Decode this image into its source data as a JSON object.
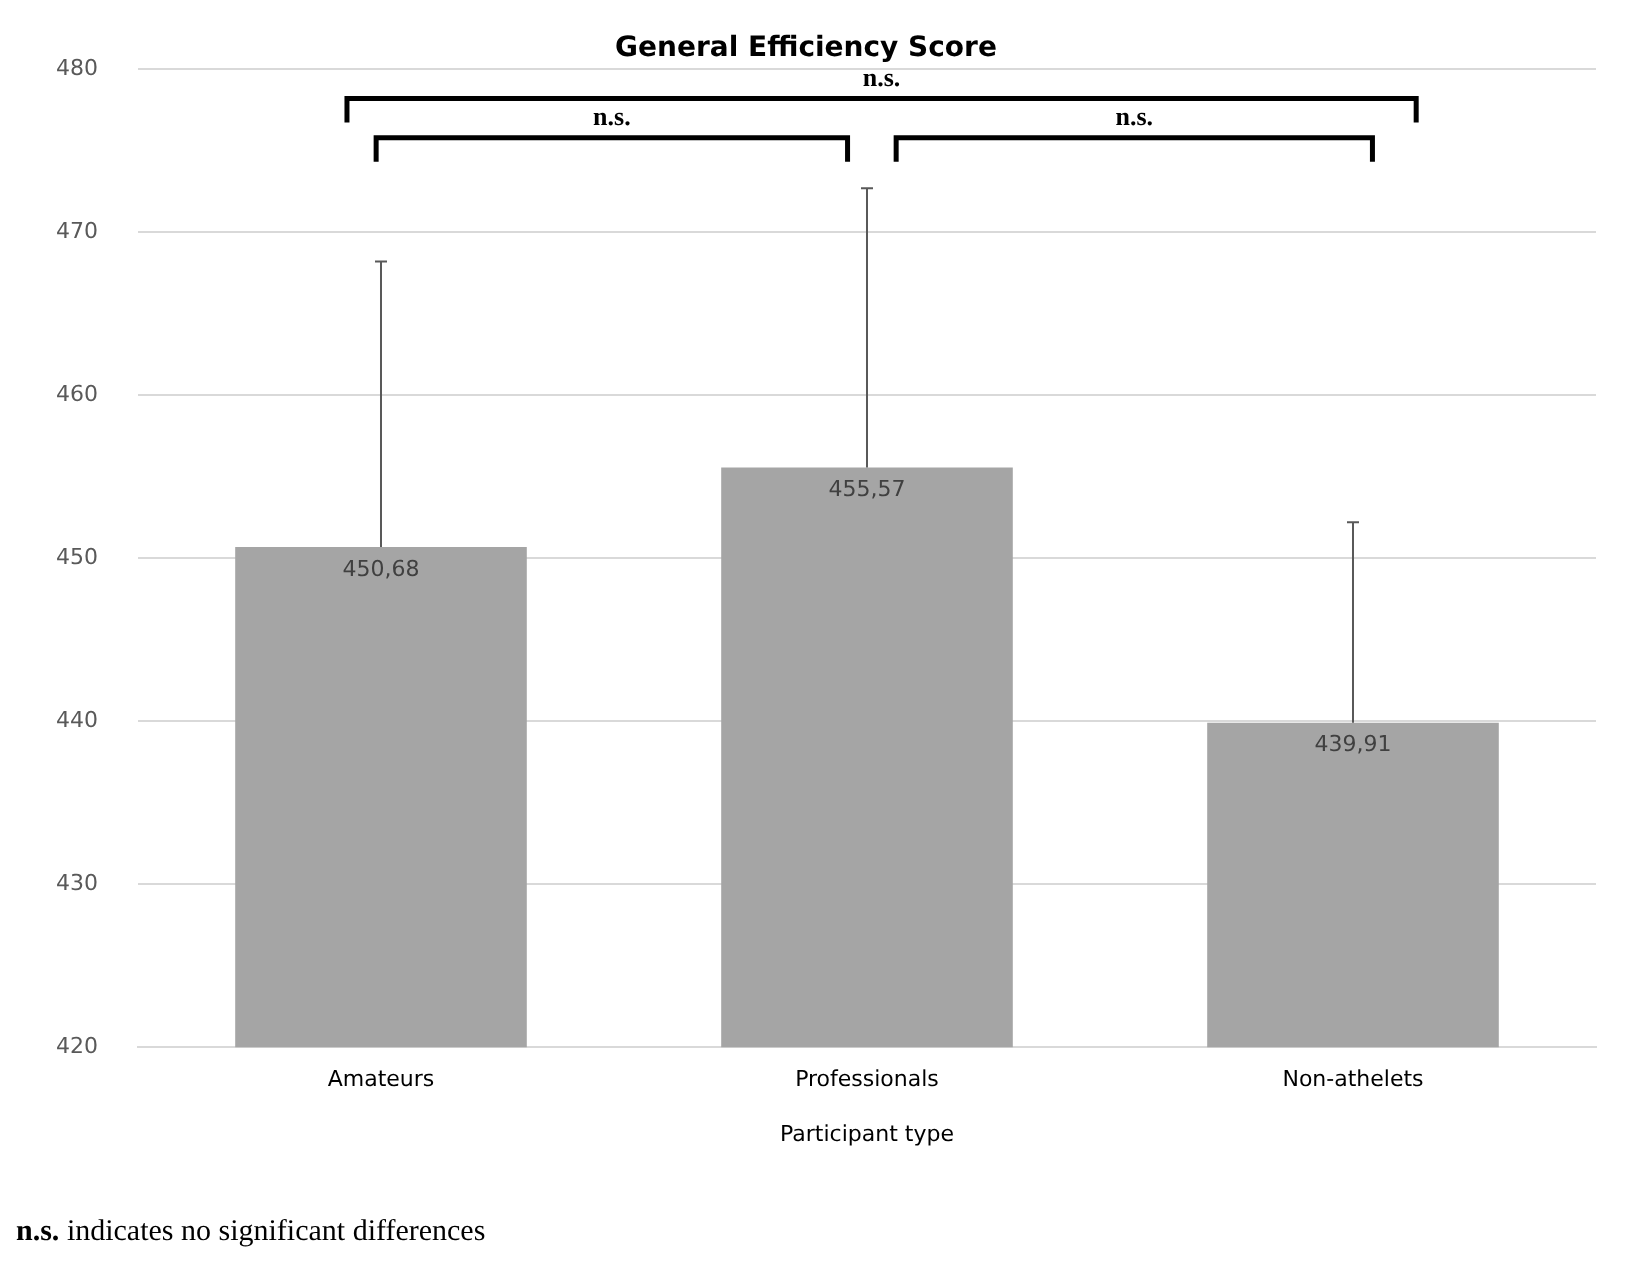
{
  "chart_data": {
    "type": "bar",
    "title": "General Efficiency Score",
    "xlabel": "Participant type",
    "categories": [
      "Amateurs",
      "Professionals",
      "Non-athelets"
    ],
    "values": [
      450.68,
      455.57,
      439.91
    ],
    "color": "#a5a5a5",
    "value_labels": [
      "450,68",
      "455,57",
      "439,91"
    ],
    "errors": [
      [
        450.68,
        468.2
      ],
      [
        455.57,
        472.7
      ],
      [
        439.91,
        452.2
      ]
    ],
    "ylim": [
      420,
      480
    ],
    "yticks": [
      420,
      430,
      440,
      450,
      460,
      470,
      480
    ],
    "grid": "y",
    "legend": false,
    "annotations": [
      "n.s.",
      "n.s.",
      "n.s.",
      "n.s. indicates no significant differences"
    ]
  }
}
